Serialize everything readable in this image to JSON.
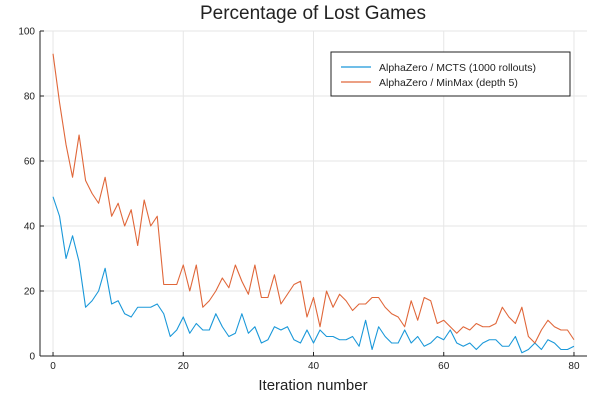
{
  "chart_data": {
    "type": "line",
    "title": "Percentage of Lost Games",
    "xlabel": "Iteration number",
    "ylabel": "",
    "xlim": [
      -2,
      82
    ],
    "ylim": [
      0,
      100
    ],
    "xticks": [
      0,
      20,
      40,
      60,
      80
    ],
    "yticks": [
      0,
      20,
      40,
      60,
      80,
      100
    ],
    "grid": true,
    "legend_position": "top-right",
    "x": [
      0,
      1,
      2,
      3,
      4,
      5,
      6,
      7,
      8,
      9,
      10,
      11,
      12,
      13,
      14,
      15,
      16,
      17,
      18,
      19,
      20,
      21,
      22,
      23,
      24,
      25,
      26,
      27,
      28,
      29,
      30,
      31,
      32,
      33,
      34,
      35,
      36,
      37,
      38,
      39,
      40,
      41,
      42,
      43,
      44,
      45,
      46,
      47,
      48,
      49,
      50,
      51,
      52,
      53,
      54,
      55,
      56,
      57,
      58,
      59,
      60,
      61,
      62,
      63,
      64,
      65,
      66,
      67,
      68,
      69,
      70,
      71,
      72,
      73,
      74,
      75,
      76,
      77,
      78,
      79,
      80
    ],
    "series": [
      {
        "name": "AlphaZero  / MCTS (1000 rollouts)",
        "color": "#1a98d9",
        "values": [
          49,
          43,
          30,
          37,
          29,
          15,
          17,
          20,
          27,
          16,
          17,
          13,
          12,
          15,
          15,
          15,
          16,
          13,
          6,
          8,
          12,
          7,
          10,
          8,
          8,
          13,
          9,
          6,
          7,
          13,
          7,
          9,
          4,
          5,
          9,
          8,
          9,
          5,
          4,
          8,
          4,
          8,
          6,
          6,
          5,
          5,
          6,
          3,
          11,
          2,
          9,
          6,
          4,
          4,
          8,
          4,
          6,
          3,
          4,
          6,
          5,
          8,
          4,
          3,
          4,
          2,
          4,
          5,
          5,
          3,
          3,
          6,
          1,
          2,
          4,
          2,
          5,
          4,
          2,
          2,
          3
        ]
      },
      {
        "name": "AlphaZero  / MinMax (depth 5)",
        "color": "#e0673a",
        "values": [
          93,
          78,
          65,
          55,
          68,
          54,
          50,
          47,
          55,
          43,
          47,
          40,
          45,
          34,
          48,
          40,
          43,
          22,
          22,
          22,
          28,
          20,
          28,
          15,
          17,
          20,
          24,
          21,
          28,
          23,
          19,
          28,
          18,
          18,
          25,
          16,
          19,
          22,
          23,
          12,
          18,
          9,
          20,
          15,
          19,
          17,
          14,
          16,
          16,
          18,
          18,
          15,
          13,
          12,
          9,
          17,
          11,
          18,
          17,
          10,
          11,
          9,
          7,
          9,
          8,
          10,
          9,
          9,
          10,
          15,
          12,
          10,
          15,
          6,
          4,
          8,
          11,
          9,
          8,
          8,
          5
        ]
      }
    ]
  }
}
